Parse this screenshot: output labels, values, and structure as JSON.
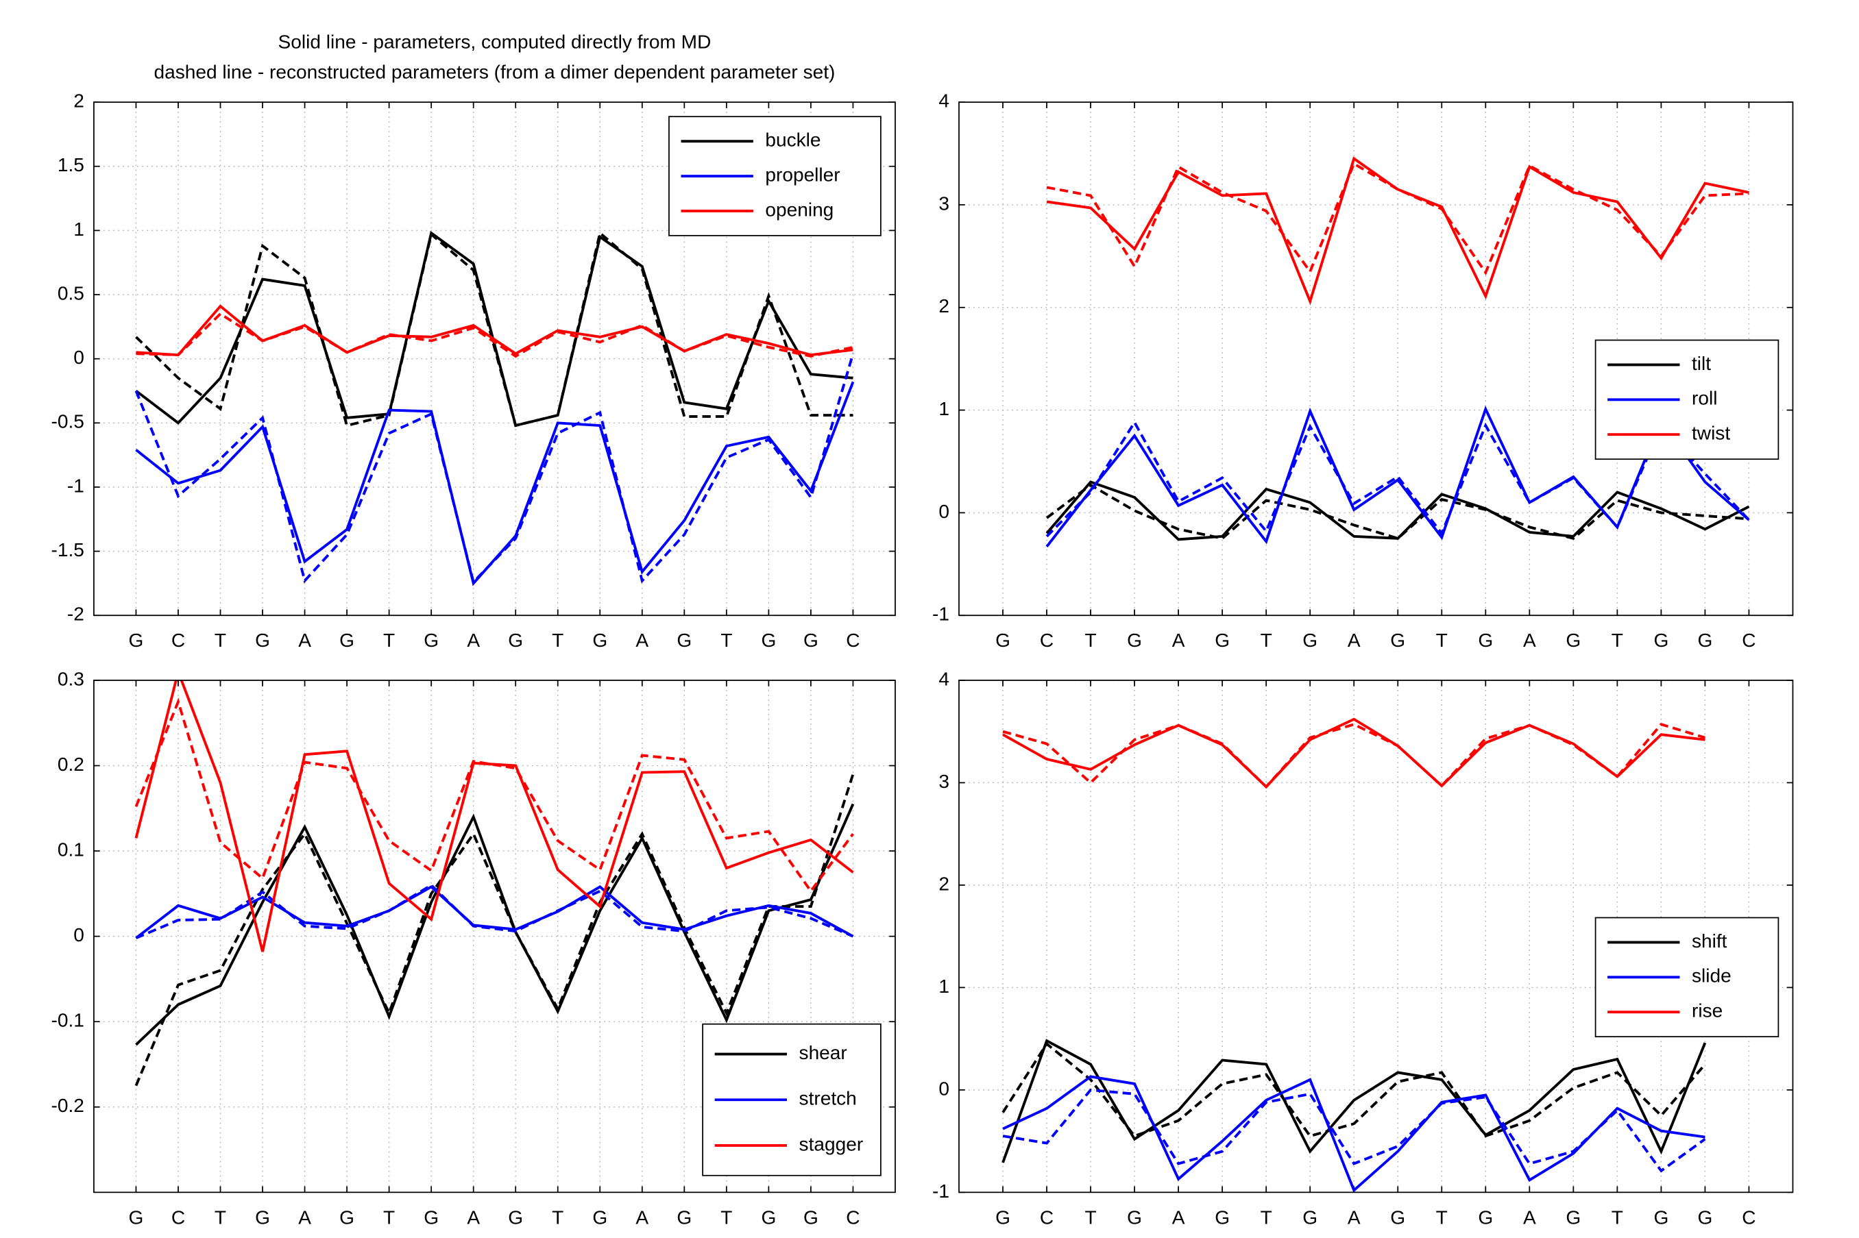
{
  "chart_data": [
    {
      "type": "line",
      "title": [
        "Solid line - parameters, computed directly from MD",
        "dashed line - reconstructed parameters (from a dimer dependent parameter set)"
      ],
      "categories": [
        "G",
        "C",
        "T",
        "G",
        "A",
        "G",
        "T",
        "G",
        "A",
        "G",
        "T",
        "G",
        "A",
        "G",
        "T",
        "G",
        "G",
        "C"
      ],
      "ylim": [
        -2,
        2
      ],
      "yticks": [
        -2,
        -1.5,
        -1,
        -0.5,
        0,
        0.5,
        1,
        1.5,
        2
      ],
      "grid": true,
      "legend_position": "upper right",
      "series": [
        {
          "name": "buckle",
          "color": "#000000",
          "values": [
            -0.25,
            -0.5,
            -0.15,
            0.62,
            0.57,
            -0.46,
            -0.43,
            0.98,
            0.74,
            -0.52,
            -0.44,
            0.95,
            0.72,
            -0.34,
            -0.39,
            0.45,
            -0.12,
            -0.15
          ],
          "dashed_values": [
            0.17,
            -0.15,
            -0.39,
            0.88,
            0.63,
            -0.52,
            -0.44,
            0.97,
            0.69,
            -0.52,
            -0.44,
            0.98,
            0.7,
            -0.45,
            -0.45,
            0.49,
            -0.44,
            -0.44
          ]
        },
        {
          "name": "propeller",
          "color": "#0000ff",
          "values": [
            -0.71,
            -0.97,
            -0.87,
            -0.53,
            -1.58,
            -1.33,
            -0.4,
            -0.41,
            -1.75,
            -1.38,
            -0.5,
            -0.52,
            -1.66,
            -1.26,
            -0.68,
            -0.61,
            -1.03,
            -0.18
          ],
          "dashed_values": [
            -0.25,
            -1.07,
            -0.78,
            -0.46,
            -1.73,
            -1.37,
            -0.58,
            -0.43,
            -1.74,
            -1.4,
            -0.58,
            -0.42,
            -1.73,
            -1.37,
            -0.77,
            -0.63,
            -1.08,
            0.04
          ]
        },
        {
          "name": "opening",
          "color": "#ff0000",
          "values": [
            0.05,
            0.03,
            0.41,
            0.14,
            0.26,
            0.05,
            0.18,
            0.17,
            0.26,
            0.04,
            0.22,
            0.17,
            0.25,
            0.06,
            0.19,
            0.12,
            0.03,
            0.07
          ],
          "dashed_values": [
            0.04,
            0.03,
            0.35,
            0.14,
            0.25,
            0.05,
            0.19,
            0.14,
            0.24,
            0.02,
            0.21,
            0.13,
            0.26,
            0.06,
            0.18,
            0.09,
            0.02,
            0.09
          ]
        }
      ]
    },
    {
      "type": "line",
      "categories": [
        "G",
        "C",
        "T",
        "G",
        "A",
        "G",
        "T",
        "G",
        "A",
        "G",
        "T",
        "G",
        "A",
        "G",
        "T",
        "G",
        "G",
        "C"
      ],
      "ylim": [
        -1,
        4
      ],
      "yticks": [
        -1,
        0,
        1,
        2,
        3,
        4
      ],
      "grid": true,
      "legend_position": "center right",
      "series": [
        {
          "name": "tilt",
          "color": "#000000",
          "values": [
            null,
            -0.2,
            0.3,
            0.15,
            -0.26,
            -0.23,
            0.23,
            0.1,
            -0.23,
            -0.25,
            0.18,
            0.04,
            -0.19,
            -0.23,
            0.2,
            0.04,
            -0.16,
            0.06
          ],
          "dashed_values": [
            null,
            -0.05,
            0.27,
            0.02,
            -0.16,
            -0.25,
            0.12,
            0.03,
            -0.12,
            -0.25,
            0.13,
            0.03,
            -0.14,
            -0.25,
            0.12,
            0.0,
            -0.03,
            -0.06
          ]
        },
        {
          "name": "roll",
          "color": "#0000ff",
          "values": [
            null,
            -0.33,
            0.22,
            0.75,
            0.07,
            0.27,
            -0.28,
            0.99,
            0.03,
            0.32,
            -0.24,
            1.01,
            0.1,
            0.35,
            -0.14,
            0.9,
            0.3,
            -0.07
          ],
          "dashed_values": [
            null,
            -0.23,
            0.2,
            0.88,
            0.11,
            0.34,
            -0.18,
            0.84,
            0.09,
            0.35,
            -0.2,
            0.85,
            0.1,
            0.34,
            -0.14,
            0.85,
            0.38,
            -0.07
          ]
        },
        {
          "name": "twist",
          "color": "#ff0000",
          "values": [
            null,
            3.03,
            2.97,
            2.57,
            3.32,
            3.09,
            3.11,
            2.06,
            3.45,
            3.15,
            2.98,
            2.11,
            3.37,
            3.12,
            3.03,
            2.48,
            3.21,
            3.12
          ],
          "dashed_values": [
            null,
            3.17,
            3.09,
            2.4,
            3.37,
            3.12,
            2.94,
            2.35,
            3.4,
            3.15,
            2.96,
            2.34,
            3.38,
            3.15,
            2.95,
            2.5,
            3.09,
            3.11
          ]
        }
      ]
    },
    {
      "type": "line",
      "categories": [
        "G",
        "C",
        "T",
        "G",
        "A",
        "G",
        "T",
        "G",
        "A",
        "G",
        "T",
        "G",
        "A",
        "G",
        "T",
        "G",
        "G",
        "C"
      ],
      "ylim": [
        -0.3,
        0.3
      ],
      "yticks": [
        -0.2,
        -0.1,
        0,
        0.1,
        0.2,
        0.3
      ],
      "grid": true,
      "legend_position": "lower right",
      "series": [
        {
          "name": "shear",
          "color": "#000000",
          "values": [
            -0.127,
            -0.08,
            -0.058,
            0.04,
            0.128,
            0.025,
            -0.094,
            0.04,
            0.14,
            0.005,
            -0.088,
            0.03,
            0.115,
            0.005,
            -0.098,
            0.03,
            0.043,
            0.155
          ],
          "dashed_values": [
            -0.175,
            -0.057,
            -0.04,
            0.055,
            0.12,
            0.015,
            -0.09,
            0.05,
            0.12,
            0.005,
            -0.085,
            0.04,
            0.12,
            0.01,
            -0.09,
            0.035,
            0.035,
            0.19
          ]
        },
        {
          "name": "stretch",
          "color": "#0000ff",
          "values": [
            -0.002,
            0.036,
            0.021,
            0.046,
            0.016,
            0.012,
            0.03,
            0.058,
            0.013,
            0.008,
            0.029,
            0.058,
            0.016,
            0.008,
            0.024,
            0.036,
            0.027,
            0.0
          ],
          "dashed_values": [
            -0.002,
            0.019,
            0.02,
            0.052,
            0.012,
            0.009,
            0.03,
            0.06,
            0.012,
            0.006,
            0.03,
            0.053,
            0.011,
            0.006,
            0.03,
            0.034,
            0.021,
            0.0
          ]
        },
        {
          "name": "stagger",
          "color": "#ff0000",
          "values": [
            0.115,
            0.31,
            0.18,
            -0.018,
            0.213,
            0.217,
            0.062,
            0.02,
            0.203,
            0.2,
            0.078,
            0.035,
            0.192,
            0.193,
            0.08,
            0.098,
            0.113,
            0.075
          ],
          "dashed_values": [
            0.152,
            0.275,
            0.11,
            0.068,
            0.204,
            0.197,
            0.112,
            0.077,
            0.205,
            0.197,
            0.112,
            0.078,
            0.212,
            0.207,
            0.115,
            0.123,
            0.053,
            0.12
          ]
        }
      ]
    },
    {
      "type": "line",
      "categories": [
        "G",
        "C",
        "T",
        "G",
        "A",
        "G",
        "T",
        "G",
        "A",
        "G",
        "T",
        "G",
        "A",
        "G",
        "T",
        "G",
        "G",
        "C"
      ],
      "ylim": [
        -1,
        4
      ],
      "yticks": [
        -1,
        0,
        1,
        2,
        3,
        4
      ],
      "grid": true,
      "legend_position": "center right",
      "series": [
        {
          "name": "shift",
          "color": "#000000",
          "values": [
            -0.71,
            0.48,
            0.25,
            -0.48,
            -0.2,
            0.29,
            0.25,
            -0.6,
            -0.1,
            0.17,
            0.1,
            -0.44,
            -0.2,
            0.2,
            0.3,
            -0.6,
            0.46,
            null
          ],
          "dashed_values": [
            -0.22,
            0.45,
            0.1,
            -0.45,
            -0.3,
            0.06,
            0.15,
            -0.45,
            -0.33,
            0.08,
            0.17,
            -0.45,
            -0.3,
            0.02,
            0.17,
            -0.25,
            0.25,
            null
          ]
        },
        {
          "name": "slide",
          "color": "#0000ff",
          "values": [
            -0.38,
            -0.18,
            0.13,
            0.06,
            -0.87,
            -0.5,
            -0.1,
            0.1,
            -0.98,
            -0.6,
            -0.12,
            -0.05,
            -0.88,
            -0.62,
            -0.18,
            -0.4,
            -0.46,
            null
          ],
          "dashed_values": [
            -0.45,
            -0.52,
            0.0,
            -0.04,
            -0.72,
            -0.6,
            -0.12,
            -0.04,
            -0.72,
            -0.55,
            -0.13,
            -0.07,
            -0.72,
            -0.6,
            -0.2,
            -0.79,
            -0.48,
            null
          ]
        },
        {
          "name": "rise",
          "color": "#ff0000",
          "values": [
            3.47,
            3.23,
            3.13,
            3.37,
            3.56,
            3.37,
            2.96,
            3.42,
            3.62,
            3.36,
            2.97,
            3.39,
            3.56,
            3.38,
            3.06,
            3.47,
            3.42,
            null
          ],
          "dashed_values": [
            3.5,
            3.38,
            3.0,
            3.42,
            3.56,
            3.38,
            2.96,
            3.44,
            3.57,
            3.36,
            2.97,
            3.43,
            3.56,
            3.37,
            3.06,
            3.57,
            3.44,
            null
          ]
        }
      ]
    }
  ]
}
